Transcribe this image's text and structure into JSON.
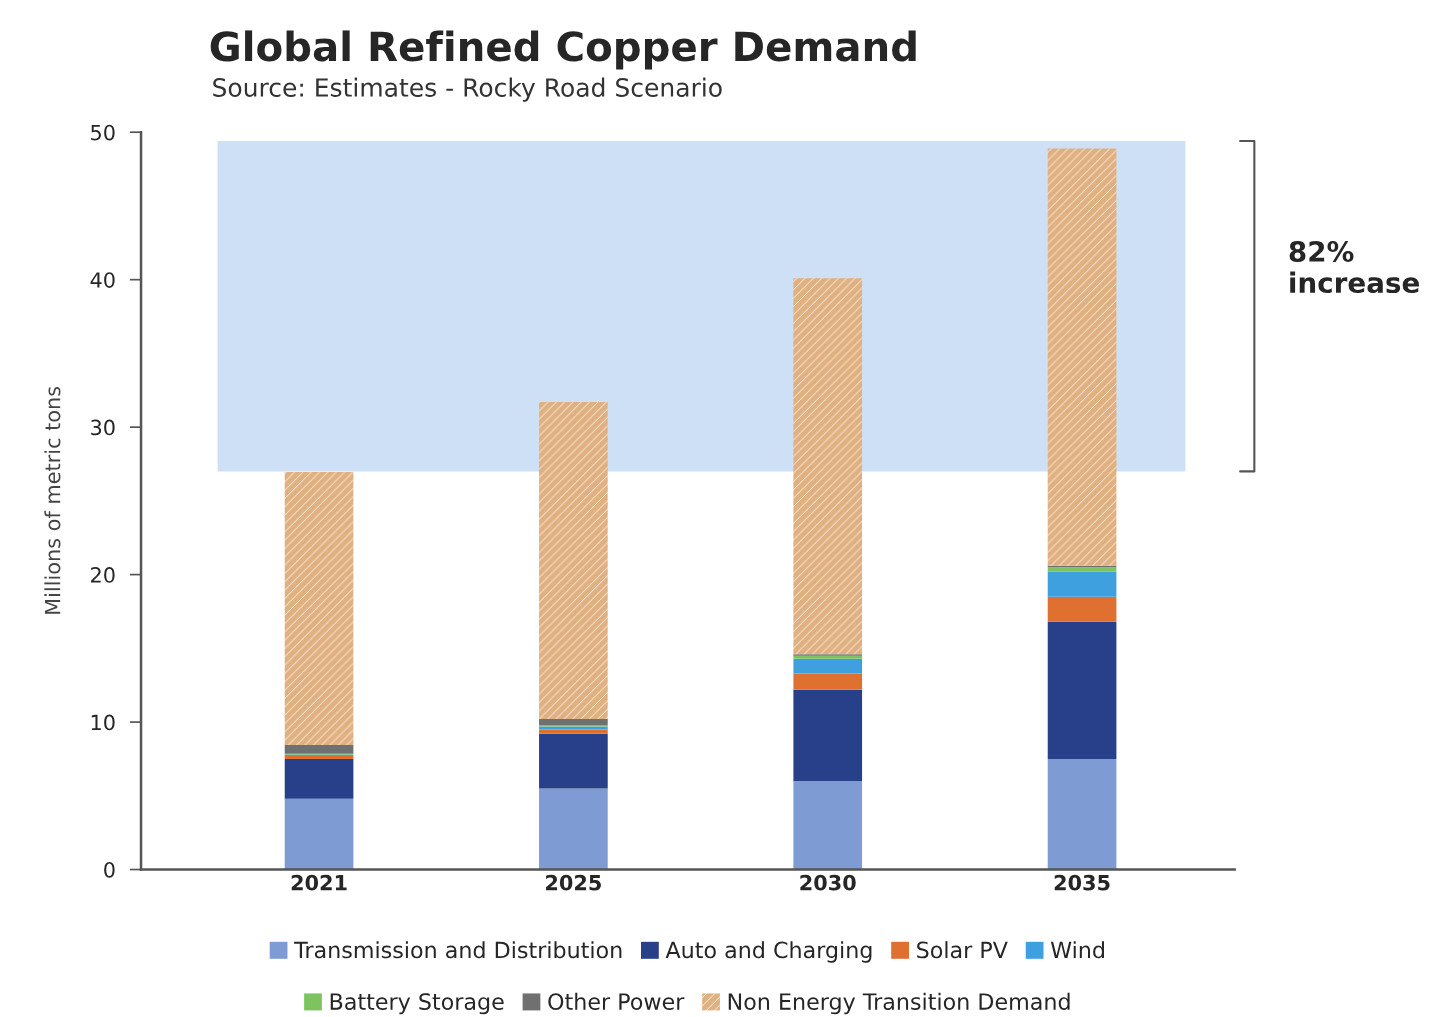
{
  "chart_data": {
    "type": "bar",
    "title": "Global Refined Copper Demand",
    "subtitle": "Source: Estimates - Rocky Road Scenario",
    "ylabel": "Millions of metric tons",
    "categories": [
      "2021",
      "2025",
      "2030",
      "2035"
    ],
    "stacked": true,
    "ylim": [
      0,
      50
    ],
    "yticks": [
      0,
      10,
      20,
      30,
      40,
      50
    ],
    "grid": false,
    "legend": "bottom",
    "series": [
      {
        "name": "Transmission and Distribution",
        "color": "#7f9bd3",
        "values": [
          4.8,
          5.5,
          6.0,
          7.5
        ]
      },
      {
        "name": "Auto and Charging",
        "color": "#283f8a",
        "values": [
          2.7,
          3.7,
          6.2,
          9.3
        ]
      },
      {
        "name": "Solar PV",
        "color": "#e07030",
        "values": [
          0.2,
          0.3,
          1.1,
          1.7
        ]
      },
      {
        "name": "Wind",
        "color": "#3fa0e0",
        "values": [
          0.1,
          0.2,
          1.0,
          1.7
        ]
      },
      {
        "name": "Battery Storage",
        "color": "#7dc460",
        "values": [
          0.05,
          0.1,
          0.2,
          0.3
        ]
      },
      {
        "name": "Other Power",
        "color": "#707070",
        "values": [
          0.6,
          0.4,
          0.1,
          0.1
        ]
      },
      {
        "name": "Non Energy Transition Demand",
        "color": "#e0b080",
        "values": [
          18.5,
          21.5,
          25.5,
          28.3
        ]
      }
    ],
    "bands": [
      {
        "axis": "y",
        "from": 27,
        "to": 49.4,
        "color": "#cde0f5"
      }
    ],
    "annotations": [
      "82% increase"
    ]
  }
}
